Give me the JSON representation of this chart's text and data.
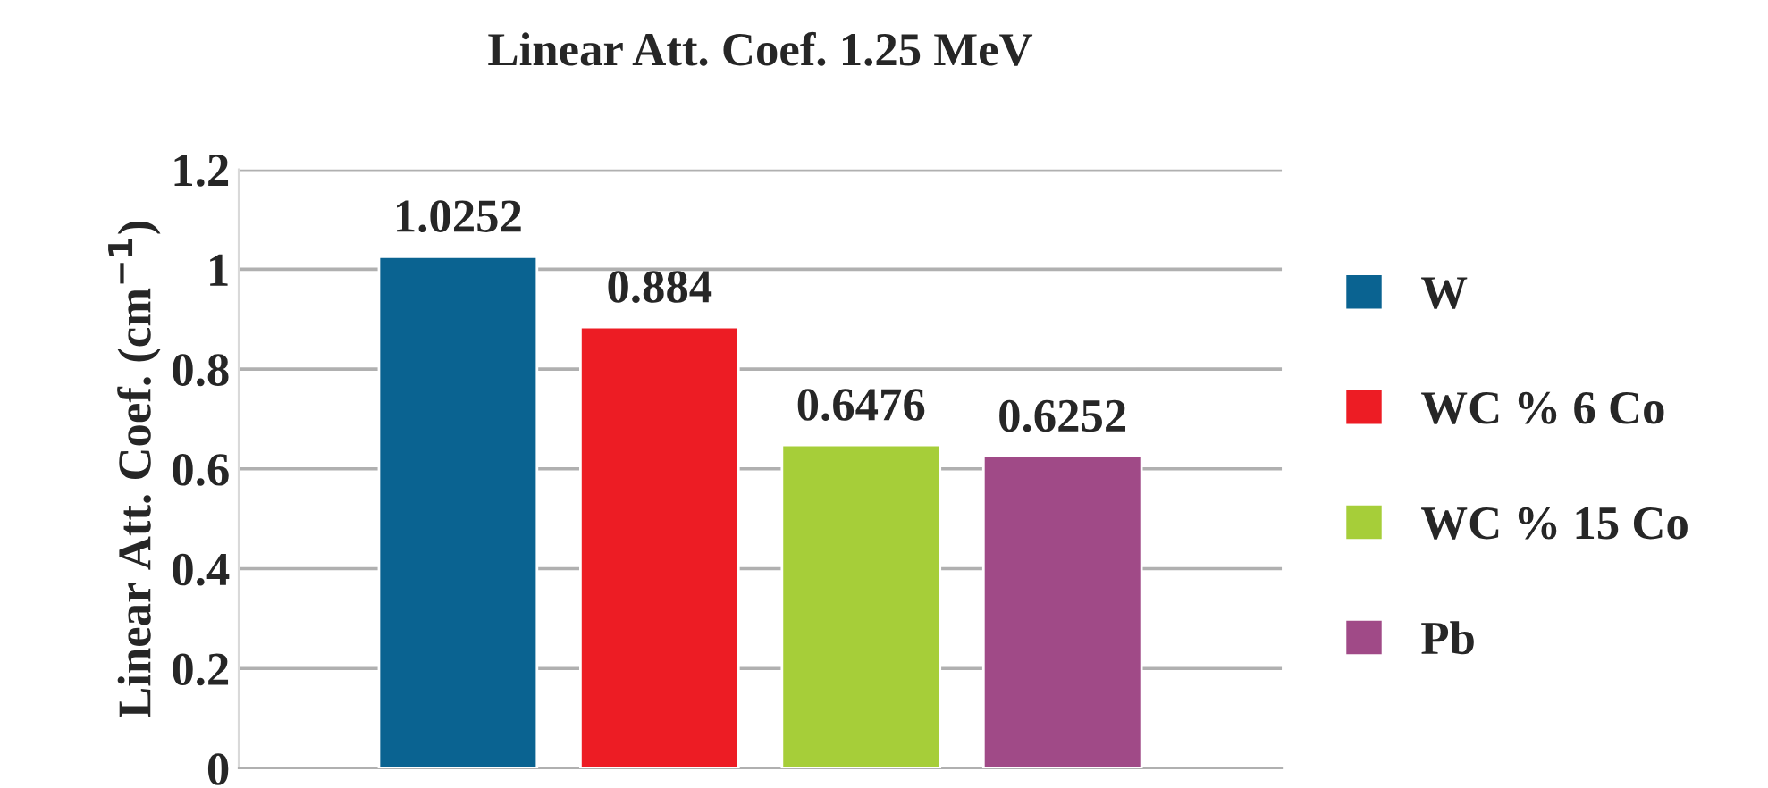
{
  "chart_data": {
    "type": "bar",
    "title": "Linear Att. Coef. 1.25 MeV",
    "ylabel": "Linear Att. Coef. (cm$^{−1}$)",
    "categories": [
      null
    ],
    "series": [
      {
        "name": "W",
        "color": "#0a6391",
        "values": [
          1.0252
        ]
      },
      {
        "name": "WC % 6 Co",
        "color": "#ed1c24",
        "values": [
          0.884
        ]
      },
      {
        "name": "WC % 15 Co",
        "color": "#a6ce39",
        "values": [
          0.6476
        ]
      },
      {
        "name": "Pb",
        "color": "#a04a87",
        "values": [
          0.6252
        ]
      }
    ],
    "ylim": [
      0,
      1.2
    ],
    "yticks": [
      0,
      0.2,
      0.4,
      0.6,
      0.8,
      1,
      1.2
    ],
    "grid": "y",
    "legend": "right",
    "data_labels": true
  }
}
